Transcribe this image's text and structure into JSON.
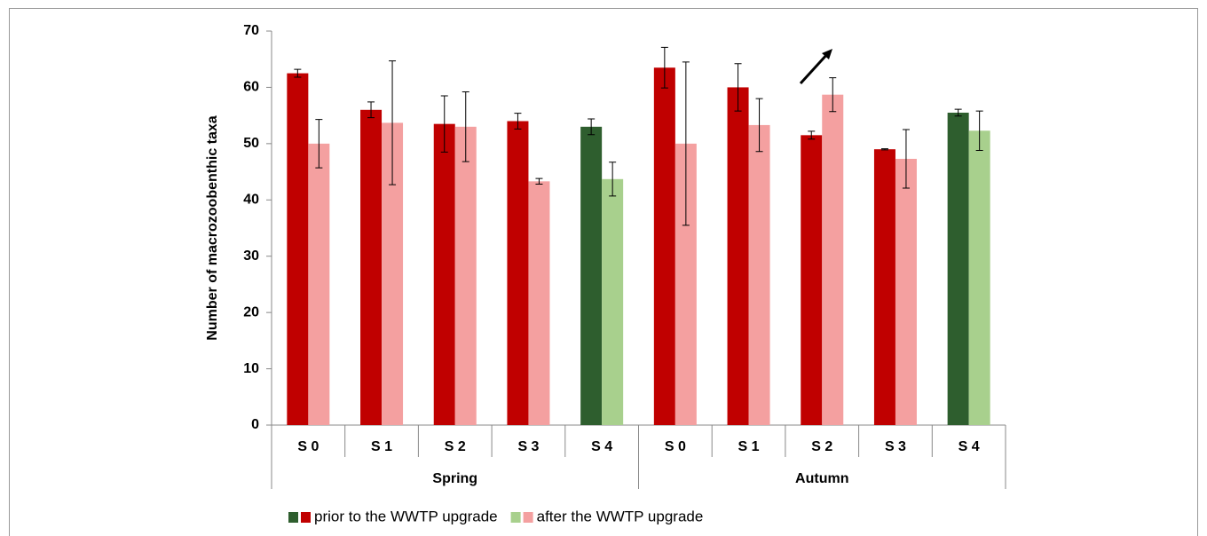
{
  "chart_data": {
    "type": "bar",
    "y_label": "Number of macrozoobenthic taxa",
    "groups": [
      {
        "name": "Spring",
        "categories": [
          "S 0",
          "S 1",
          "S 2",
          "S 3",
          "S 4"
        ]
      },
      {
        "name": "Autumn",
        "categories": [
          "S 0",
          "S 1",
          "S 2",
          "S 3",
          "S 4"
        ]
      }
    ],
    "series": [
      {
        "name": "prior to the WWTP upgrade",
        "legend_colors": [
          "#2e5e2e",
          "#c00000"
        ],
        "colors": [
          "#c00000",
          "#c00000",
          "#c00000",
          "#c00000",
          "#2e5e2e",
          "#c00000",
          "#c00000",
          "#c00000",
          "#c00000",
          "#2e5e2e"
        ],
        "values": [
          62.5,
          56,
          53.5,
          54,
          53,
          63.5,
          60,
          51.5,
          49,
          55.5
        ],
        "errors": [
          0.7,
          1.4,
          5,
          1.4,
          1.4,
          3.6,
          4.2,
          0.7,
          0.1,
          0.6
        ]
      },
      {
        "name": "after the WWTP upgrade",
        "legend_colors": [
          "#a8d08d",
          "#f4a0a0"
        ],
        "colors": [
          "#f4a0a0",
          "#f4a0a0",
          "#f4a0a0",
          "#f4a0a0",
          "#a8d08d",
          "#f4a0a0",
          "#f4a0a0",
          "#f4a0a0",
          "#f4a0a0",
          "#a8d08d"
        ],
        "values": [
          50,
          53.7,
          53,
          43.3,
          43.7,
          50,
          53.3,
          58.7,
          47.3,
          52.3
        ],
        "errors": [
          4.3,
          11,
          6.2,
          0.5,
          3,
          14.5,
          4.7,
          3,
          5.2,
          3.5
        ]
      }
    ],
    "ylim": [
      0,
      70
    ],
    "yticks": [
      0,
      10,
      20,
      30,
      40,
      50,
      60,
      70
    ],
    "grid": false
  }
}
